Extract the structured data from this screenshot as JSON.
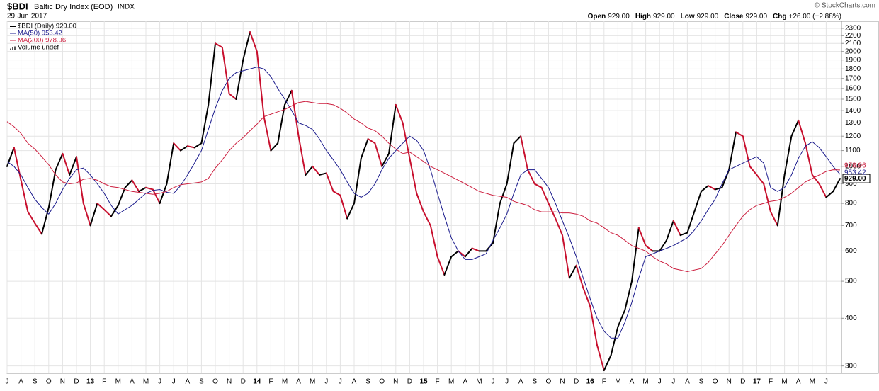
{
  "chart_data": {
    "type": "line",
    "title": "$BDI",
    "subtitle": "Baltic Dry Index (EOD)",
    "exchange": "INDX",
    "date": "29-Jun-2017",
    "credit": "© StockCharts.com",
    "quote": [
      {
        "label": "Open",
        "value": "929.00"
      },
      {
        "label": "High",
        "value": "929.00"
      },
      {
        "label": "Low",
        "value": "929.00"
      },
      {
        "label": "Close",
        "value": "929.00"
      },
      {
        "label": "Chg",
        "value": "+26.00 (+2.88%)"
      }
    ],
    "volume_legend": "Volume undef",
    "categories": [
      "J",
      null,
      "A",
      null,
      "S",
      null,
      "O",
      null,
      "N",
      null,
      "D",
      null,
      "13",
      null,
      "F",
      null,
      "M",
      null,
      "A",
      null,
      "M",
      null,
      "J",
      null,
      "J",
      null,
      "A",
      null,
      "S",
      null,
      "O",
      null,
      "N",
      null,
      "D",
      null,
      "14",
      null,
      "F",
      null,
      "M",
      null,
      "A",
      null,
      "M",
      null,
      "J",
      null,
      "J",
      null,
      "A",
      null,
      "S",
      null,
      "O",
      null,
      "N",
      null,
      "D",
      null,
      "15",
      null,
      "F",
      null,
      "M",
      null,
      "A",
      null,
      "M",
      null,
      "J",
      null,
      "J",
      null,
      "A",
      null,
      "S",
      null,
      "O",
      null,
      "N",
      null,
      "D",
      null,
      "16",
      null,
      "F",
      null,
      "M",
      null,
      "A",
      null,
      "M",
      null,
      "J",
      null,
      "J",
      null,
      "A",
      null,
      "S",
      null,
      "O",
      null,
      "N",
      null,
      "D",
      null,
      "17",
      null,
      "F",
      null,
      "M",
      null,
      "A",
      null,
      "M",
      null,
      "J",
      null,
      null
    ],
    "series": [
      {
        "name": "$BDI (Daily) 929.00",
        "color": "#000000",
        "down_color": "#c8102e",
        "end_label": "929.00",
        "values": [
          1000,
          1120,
          920,
          760,
          710,
          665,
          780,
          980,
          1080,
          950,
          1060,
          800,
          700,
          800,
          770,
          740,
          790,
          880,
          920,
          860,
          880,
          870,
          800,
          900,
          1150,
          1100,
          1130,
          1120,
          1150,
          1450,
          2100,
          2050,
          1550,
          1500,
          1900,
          2250,
          2000,
          1350,
          1100,
          1150,
          1450,
          1580,
          1200,
          950,
          1000,
          950,
          960,
          860,
          840,
          730,
          800,
          1050,
          1180,
          1150,
          1000,
          1080,
          1450,
          1300,
          1050,
          850,
          760,
          700,
          580,
          520,
          580,
          600,
          580,
          610,
          600,
          600,
          630,
          800,
          900,
          1150,
          1200,
          980,
          900,
          880,
          800,
          730,
          660,
          510,
          550,
          480,
          430,
          340,
          292,
          320,
          380,
          420,
          500,
          690,
          620,
          600,
          600,
          640,
          720,
          660,
          670,
          760,
          860,
          890,
          870,
          880,
          980,
          1230,
          1200,
          1000,
          950,
          900,
          760,
          700,
          950,
          1200,
          1320,
          1150,
          950,
          900,
          830,
          860,
          929
        ]
      },
      {
        "name": "MA(50) 953.42",
        "color": "#1a1a8c",
        "end_label": "953.42",
        "values": [
          1030,
          1000,
          950,
          880,
          820,
          780,
          750,
          800,
          870,
          930,
          980,
          990,
          950,
          900,
          850,
          790,
          750,
          770,
          790,
          820,
          850,
          865,
          870,
          855,
          850,
          890,
          950,
          1020,
          1100,
          1250,
          1420,
          1580,
          1700,
          1760,
          1780,
          1800,
          1820,
          1800,
          1720,
          1600,
          1500,
          1400,
          1300,
          1280,
          1250,
          1180,
          1100,
          1040,
          980,
          910,
          850,
          830,
          850,
          900,
          980,
          1050,
          1100,
          1150,
          1200,
          1170,
          1100,
          980,
          850,
          740,
          650,
          600,
          570,
          570,
          580,
          590,
          640,
          690,
          750,
          850,
          950,
          980,
          980,
          930,
          880,
          800,
          720,
          650,
          580,
          510,
          450,
          400,
          370,
          355,
          355,
          390,
          440,
          510,
          580,
          590,
          600,
          610,
          620,
          635,
          650,
          680,
          720,
          770,
          820,
          900,
          980,
          1000,
          1020,
          1040,
          1060,
          1020,
          880,
          860,
          880,
          950,
          1050,
          1130,
          1160,
          1120,
          1060,
          1000,
          953.42
        ]
      },
      {
        "name": "MA(200) 978.96",
        "color": "#cc1f3f",
        "end_label": "978.96",
        "values": [
          1310,
          1270,
          1220,
          1150,
          1110,
          1060,
          1010,
          950,
          910,
          900,
          905,
          925,
          930,
          920,
          900,
          885,
          880,
          870,
          860,
          855,
          850,
          845,
          850,
          860,
          880,
          895,
          900,
          905,
          910,
          930,
          990,
          1040,
          1100,
          1150,
          1190,
          1240,
          1290,
          1350,
          1370,
          1390,
          1410,
          1440,
          1470,
          1480,
          1470,
          1460,
          1460,
          1450,
          1420,
          1380,
          1330,
          1300,
          1260,
          1240,
          1200,
          1150,
          1110,
          1080,
          1090,
          1060,
          1030,
          1000,
          980,
          960,
          940,
          920,
          900,
          880,
          860,
          850,
          840,
          835,
          830,
          810,
          800,
          790,
          770,
          760,
          760,
          760,
          755,
          755,
          750,
          740,
          720,
          710,
          690,
          670,
          660,
          640,
          620,
          610,
          600,
          580,
          565,
          555,
          540,
          535,
          530,
          535,
          540,
          560,
          590,
          620,
          660,
          700,
          740,
          770,
          790,
          800,
          810,
          815,
          830,
          850,
          880,
          910,
          930,
          950,
          970,
          980,
          978.96
        ]
      }
    ],
    "log_scale": true,
    "ylim": [
      287,
      2400
    ],
    "yticks": [
      300,
      400,
      500,
      600,
      700,
      800,
      900,
      1000,
      1100,
      1200,
      1300,
      1400,
      1500,
      1600,
      1700,
      1800,
      1900,
      2000,
      2100,
      2200,
      2300
    ],
    "grid": true
  }
}
